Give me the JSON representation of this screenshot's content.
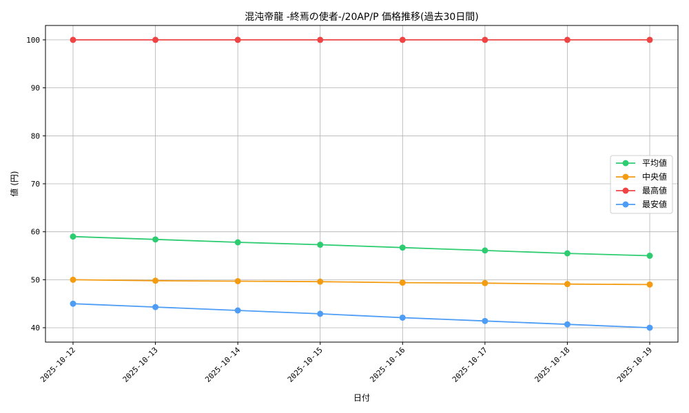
{
  "chart_data": {
    "type": "line",
    "title": "混沌帝龍 -終焉の使者-/20AP/P 価格推移(過去30日間)",
    "xlabel": "日付",
    "ylabel": "値 (円)",
    "x": [
      "2025-10-12",
      "2025-10-13",
      "2025-10-14",
      "2025-10-15",
      "2025-10-16",
      "2025-10-17",
      "2025-10-18",
      "2025-10-19"
    ],
    "ylim": [
      37,
      103
    ],
    "yticks": [
      40,
      50,
      60,
      70,
      80,
      90,
      100
    ],
    "grid": true,
    "legend_position": "center-right",
    "series": [
      {
        "name": "平均値",
        "color": "#2ecc71",
        "values": [
          59.0,
          58.4,
          57.8,
          57.3,
          56.7,
          56.1,
          55.5,
          55.0
        ]
      },
      {
        "name": "中央値",
        "color": "#f39c12",
        "values": [
          50.0,
          49.8,
          49.7,
          49.6,
          49.4,
          49.3,
          49.1,
          49.0
        ]
      },
      {
        "name": "最高値",
        "color": "#ef4444",
        "values": [
          100,
          100,
          100,
          100,
          100,
          100,
          100,
          100
        ]
      },
      {
        "name": "最安値",
        "color": "#4d9cf5",
        "values": [
          45.0,
          44.3,
          43.6,
          42.9,
          42.1,
          41.4,
          40.7,
          40.0
        ]
      }
    ]
  }
}
